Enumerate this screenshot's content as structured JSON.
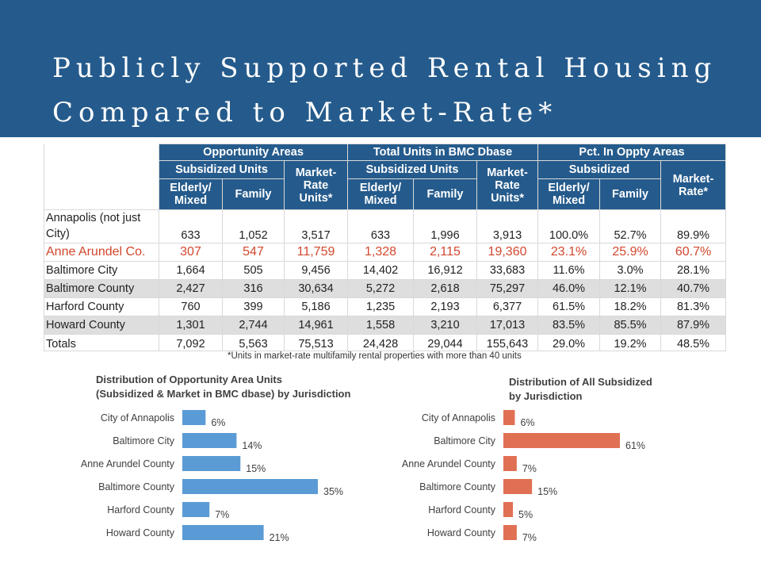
{
  "title": {
    "line1": "Publicly Supported Rental Housing",
    "line2": "Compared to Market-Rate*"
  },
  "table": {
    "header_groups": [
      "Opportunity Areas",
      "Total Units in BMC Dbase",
      "Pct. In Oppty Areas"
    ],
    "sub_headers": [
      "Subsidized Units",
      "Market-Rate Units*",
      "Subsidized Units",
      "Market-Rate Units*",
      "Subsidized",
      "Market-Rate*"
    ],
    "leaf_headers": [
      "Elderly/ Mixed",
      "Family",
      "Elderly/ Mixed",
      "Family",
      "Elderly/ Mixed",
      "Family"
    ],
    "rows": [
      {
        "name": "Annapolis (not just City)",
        "values": [
          "633",
          "1,052",
          "3,517",
          "633",
          "1,996",
          "3,913",
          "100.0%",
          "52.7%",
          "89.9%"
        ]
      },
      {
        "name": "Anne Arundel Co.",
        "values": [
          "307",
          "547",
          "11,759",
          "1,328",
          "2,115",
          "19,360",
          "23.1%",
          "25.9%",
          "60.7%"
        ]
      },
      {
        "name": "Baltimore City",
        "values": [
          "1,664",
          "505",
          "9,456",
          "14,402",
          "16,912",
          "33,683",
          "11.6%",
          "3.0%",
          "28.1%"
        ]
      },
      {
        "name": "Baltimore County",
        "values": [
          "2,427",
          "316",
          "30,634",
          "5,272",
          "2,618",
          "75,297",
          "46.0%",
          "12.1%",
          "40.7%"
        ]
      },
      {
        "name": "Harford County",
        "values": [
          "760",
          "399",
          "5,186",
          "1,235",
          "2,193",
          "6,377",
          "61.5%",
          "18.2%",
          "81.3%"
        ]
      },
      {
        "name": "Howard County",
        "values": [
          "1,301",
          "2,744",
          "14,961",
          "1,558",
          "3,210",
          "17,013",
          "83.5%",
          "85.5%",
          "87.9%"
        ]
      },
      {
        "name": "Totals",
        "values": [
          "7,092",
          "5,563",
          "75,513",
          "24,428",
          "29,044",
          "155,643",
          "29.0%",
          "19.2%",
          "48.5%"
        ]
      }
    ],
    "highlight_color": "#d2472d",
    "header_color": "#255b8c"
  },
  "footnote": "*Units in market-rate multifamily rental properties with more than 40 units",
  "chart_data": [
    {
      "type": "bar",
      "orientation": "horizontal",
      "title": "Distribution of Opportunity Area Units (Subsidized & Market in BMC dbase) by Jurisdiction",
      "title_lines": [
        "Distribution of Opportunity Area Units",
        "(Subsidized & Market in BMC dbase) by Jurisdiction"
      ],
      "categories": [
        "City of Annapolis",
        "Baltimore City",
        "Anne Arundel County",
        "Baltimore County",
        "Harford County",
        "Howard County"
      ],
      "values": [
        6,
        14,
        15,
        35,
        7,
        21
      ],
      "labels": [
        "6%",
        "14%",
        "15%",
        "35%",
        "7%",
        "21%"
      ],
      "xlim": [
        0,
        35
      ],
      "color": "#5b9bd5"
    },
    {
      "type": "bar",
      "orientation": "horizontal",
      "title": "Distribution of All Subsidized by Jurisdiction",
      "title_lines": [
        "Distribution of All  Subsidized",
        "by Jurisdiction"
      ],
      "categories": [
        "City of Annapolis",
        "Baltimore City",
        "Anne Arundel County",
        "Baltimore County",
        "Harford County",
        "Howard County"
      ],
      "values": [
        6,
        61,
        7,
        15,
        5,
        7
      ],
      "labels": [
        "6%",
        "61%",
        "7%",
        "15%",
        "5%",
        "7%"
      ],
      "xlim": [
        0,
        61
      ],
      "color": "#e07054"
    }
  ]
}
